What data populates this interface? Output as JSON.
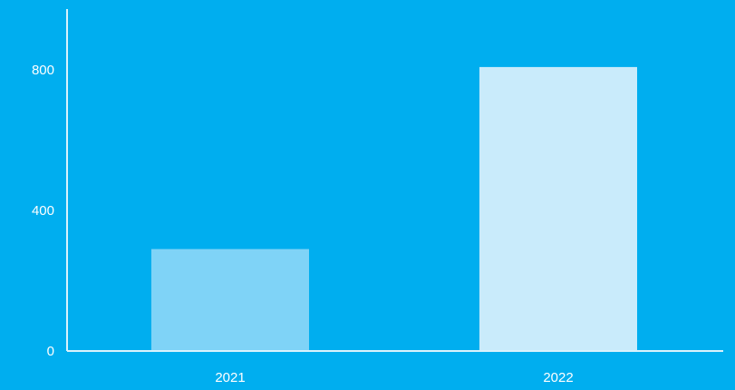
{
  "chart_data": {
    "type": "bar",
    "title": "",
    "xlabel": "",
    "ylabel": "",
    "categories": [
      "2021",
      "2022"
    ],
    "values": [
      290,
      808
    ],
    "ylim": [
      0,
      1000
    ],
    "yticks": [
      0,
      400,
      800
    ],
    "grid": false,
    "legend": "none"
  },
  "colors": {
    "background": "#00aeef",
    "axis": "#d9f2fc",
    "text": "#ffffff",
    "bars": [
      "#7fd3f7",
      "#c9ebfb"
    ]
  }
}
